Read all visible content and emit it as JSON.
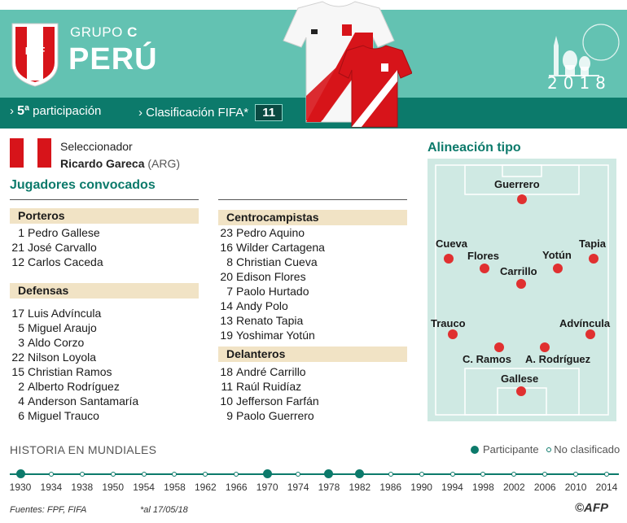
{
  "header": {
    "crest_text": "FPF",
    "grupo_label": "GRUPO",
    "grupo_letter": "C",
    "country": "PERÚ",
    "participation_num": "5ª",
    "participation_label": "participación",
    "fifa_label": "Clasificación FIFA*",
    "fifa_rank": "11",
    "year": "2018"
  },
  "coach": {
    "label": "Seleccionador",
    "name": "Ricardo Gareca",
    "country": "(ARG)"
  },
  "squad": {
    "title": "Jugadores convocados",
    "porteros": {
      "label": "Porteros",
      "players": [
        {
          "n": "1",
          "name": "Pedro Gallese"
        },
        {
          "n": "21",
          "name": "José Carvallo"
        },
        {
          "n": "12",
          "name": "Carlos Caceda"
        }
      ]
    },
    "defensas": {
      "label": "Defensas",
      "players": [
        {
          "n": "17",
          "name": "Luis Advíncula"
        },
        {
          "n": "5",
          "name": "Miguel Araujo"
        },
        {
          "n": "3",
          "name": "Aldo Corzo"
        },
        {
          "n": "22",
          "name": "Nilson Loyola"
        },
        {
          "n": "15",
          "name": "Christian Ramos"
        },
        {
          "n": "2",
          "name": "Alberto Rodríguez"
        },
        {
          "n": "4",
          "name": "Anderson Santamaría"
        },
        {
          "n": "6",
          "name": "Miguel Trauco"
        }
      ]
    },
    "centrocampistas": {
      "label": "Centrocampistas",
      "players": [
        {
          "n": "23",
          "name": "Pedro Aquino"
        },
        {
          "n": "16",
          "name": "Wilder Cartagena"
        },
        {
          "n": "8",
          "name": "Christian Cueva"
        },
        {
          "n": "20",
          "name": "Edison Flores"
        },
        {
          "n": "7",
          "name": "Paolo Hurtado"
        },
        {
          "n": "14",
          "name": "Andy Polo"
        },
        {
          "n": "13",
          "name": "Renato Tapia"
        },
        {
          "n": "19",
          "name": "Yoshimar Yotún"
        }
      ]
    },
    "delanteros": {
      "label": "Delanteros",
      "players": [
        {
          "n": "18",
          "name": "André Carrillo"
        },
        {
          "n": "11",
          "name": "Raúl Ruidíaz"
        },
        {
          "n": "10",
          "name": "Jefferson Farfán"
        },
        {
          "n": "9",
          "name": "Paolo Guerrero"
        }
      ]
    }
  },
  "lineup": {
    "title": "Alineación tipo",
    "players": [
      "Guerrero",
      "Cueva",
      "Flores",
      "Yotún",
      "Tapia",
      "Carrillo",
      "Trauco",
      "Advíncula",
      "C. Ramos",
      "A. Rodríguez",
      "Gallese"
    ]
  },
  "history": {
    "title": "HISTORIA EN MUNDIALES",
    "legend_participant": "Participante",
    "legend_not": "No clasificado",
    "years": [
      {
        "year": "1930",
        "participated": true
      },
      {
        "year": "1934",
        "participated": false
      },
      {
        "year": "1938",
        "participated": false
      },
      {
        "year": "1950",
        "participated": false
      },
      {
        "year": "1954",
        "participated": false
      },
      {
        "year": "1958",
        "participated": false
      },
      {
        "year": "1962",
        "participated": false
      },
      {
        "year": "1966",
        "participated": false
      },
      {
        "year": "1970",
        "participated": true
      },
      {
        "year": "1974",
        "participated": false
      },
      {
        "year": "1978",
        "participated": true
      },
      {
        "year": "1982",
        "participated": true
      },
      {
        "year": "1986",
        "participated": false
      },
      {
        "year": "1990",
        "participated": false
      },
      {
        "year": "1994",
        "participated": false
      },
      {
        "year": "1998",
        "participated": false
      },
      {
        "year": "2002",
        "participated": false
      },
      {
        "year": "2006",
        "participated": false
      },
      {
        "year": "2010",
        "participated": false
      },
      {
        "year": "2014",
        "participated": false
      }
    ]
  },
  "footer": {
    "sources": "Fuentes: FPF, FIFA",
    "asof": "*al 17/05/18",
    "credit": "©AFP"
  },
  "colors": {
    "teal": "#63c2b2",
    "dark_teal": "#0c7a6b",
    "peru_red": "#d7141a",
    "section_bg": "#f1e3c5"
  }
}
